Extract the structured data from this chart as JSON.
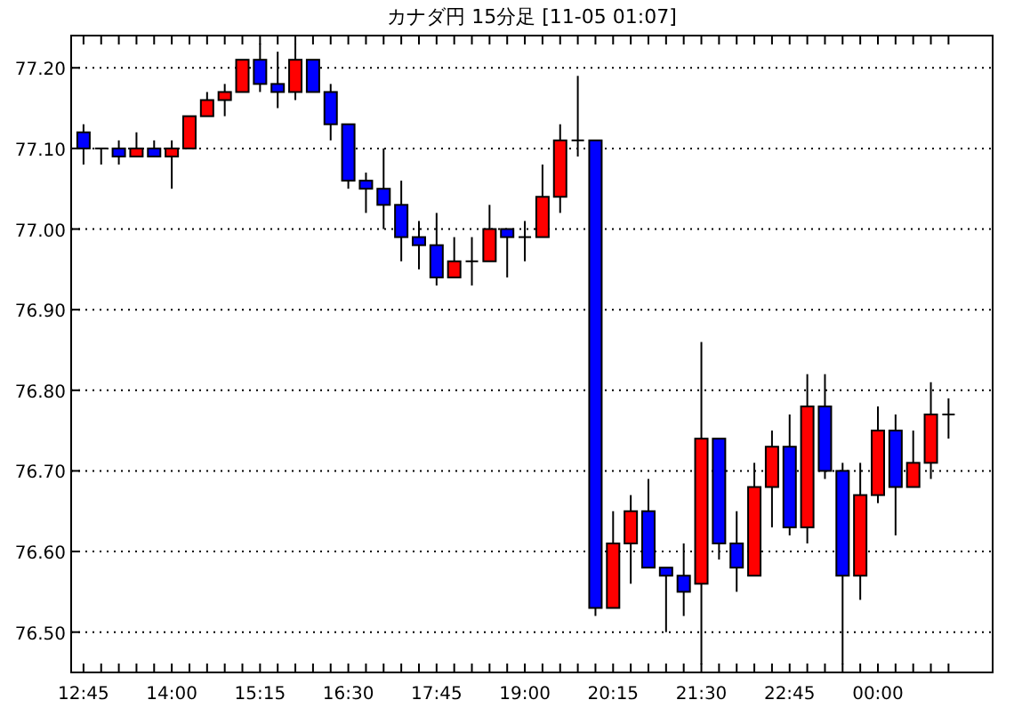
{
  "chart_data": {
    "type": "candlestick",
    "title": "カナダ円 15分足 [11-05 01:07]",
    "categories": [
      "12:45",
      null,
      null,
      null,
      null,
      "14:00",
      null,
      null,
      null,
      null,
      "15:15",
      null,
      null,
      null,
      null,
      "16:30",
      null,
      null,
      null,
      null,
      "17:45",
      null,
      null,
      null,
      null,
      "19:00",
      null,
      null,
      null,
      null,
      "20:15",
      null,
      null,
      null,
      null,
      "21:30",
      null,
      null,
      null,
      null,
      "22:45",
      null,
      null,
      null,
      null,
      "00:00",
      null,
      null,
      null,
      null
    ],
    "ohlc": [
      [
        77.12,
        77.13,
        77.08,
        77.1
      ],
      [
        77.1,
        77.1,
        77.08,
        77.1
      ],
      [
        77.1,
        77.11,
        77.08,
        77.09
      ],
      [
        77.09,
        77.12,
        77.09,
        77.1
      ],
      [
        77.1,
        77.11,
        77.09,
        77.09
      ],
      [
        77.09,
        77.11,
        77.05,
        77.1
      ],
      [
        77.1,
        77.14,
        77.1,
        77.14
      ],
      [
        77.14,
        77.17,
        77.14,
        77.16
      ],
      [
        77.16,
        77.18,
        77.14,
        77.17
      ],
      [
        77.17,
        77.21,
        77.17,
        77.21
      ],
      [
        77.21,
        77.23,
        77.17,
        77.18
      ],
      [
        77.18,
        77.22,
        77.15,
        77.17
      ],
      [
        77.17,
        77.23,
        77.16,
        77.21
      ],
      [
        77.21,
        77.21,
        77.17,
        77.17
      ],
      [
        77.17,
        77.18,
        77.11,
        77.13
      ],
      [
        77.13,
        77.13,
        77.05,
        77.06
      ],
      [
        77.06,
        77.07,
        77.02,
        77.05
      ],
      [
        77.05,
        77.1,
        77.0,
        77.03
      ],
      [
        77.03,
        77.06,
        76.96,
        76.99
      ],
      [
        76.99,
        77.01,
        76.95,
        76.98
      ],
      [
        76.98,
        77.02,
        76.93,
        76.94
      ],
      [
        76.94,
        76.99,
        76.94,
        76.96
      ],
      [
        76.96,
        76.99,
        76.93,
        76.96
      ],
      [
        76.96,
        77.03,
        76.96,
        77.0
      ],
      [
        77.0,
        77.0,
        76.94,
        76.99
      ],
      [
        76.99,
        77.01,
        76.96,
        76.99
      ],
      [
        76.99,
        77.08,
        76.99,
        77.04
      ],
      [
        77.04,
        77.13,
        77.02,
        77.11
      ],
      [
        77.11,
        77.19,
        77.09,
        77.11
      ],
      [
        77.11,
        77.11,
        76.52,
        76.53
      ],
      [
        76.53,
        76.65,
        76.53,
        76.61
      ],
      [
        76.61,
        76.67,
        76.56,
        76.65
      ],
      [
        76.65,
        76.69,
        76.58,
        76.58
      ],
      [
        76.58,
        76.58,
        76.5,
        76.57
      ],
      [
        76.57,
        76.61,
        76.52,
        76.55
      ],
      [
        76.56,
        76.86,
        76.46,
        76.74
      ],
      [
        76.74,
        76.74,
        76.59,
        76.61
      ],
      [
        76.61,
        76.65,
        76.55,
        76.58
      ],
      [
        76.57,
        76.71,
        76.57,
        76.68
      ],
      [
        76.68,
        76.75,
        76.63,
        76.73
      ],
      [
        76.73,
        76.77,
        76.62,
        76.63
      ],
      [
        76.63,
        76.82,
        76.61,
        76.78
      ],
      [
        76.78,
        76.82,
        76.69,
        76.7
      ],
      [
        76.7,
        76.71,
        76.46,
        76.57
      ],
      [
        76.57,
        76.71,
        76.54,
        76.67
      ],
      [
        76.67,
        76.78,
        76.66,
        76.75
      ],
      [
        76.75,
        76.77,
        76.62,
        76.68
      ],
      [
        76.68,
        76.75,
        76.68,
        76.71
      ],
      [
        76.71,
        76.81,
        76.69,
        76.77
      ],
      [
        76.77,
        76.79,
        76.74,
        76.77
      ]
    ],
    "colors": [
      "#0000ff",
      "#000000",
      "#0000ff",
      "#ff0000",
      "#0000ff",
      "#ff0000",
      "#ff0000",
      "#ff0000",
      "#ff0000",
      "#ff0000",
      "#0000ff",
      "#0000ff",
      "#ff0000",
      "#0000ff",
      "#0000ff",
      "#0000ff",
      "#0000ff",
      "#0000ff",
      "#0000ff",
      "#0000ff",
      "#0000ff",
      "#ff0000",
      "#000000",
      "#ff0000",
      "#0000ff",
      "#000000",
      "#ff0000",
      "#ff0000",
      "#000000",
      "#0000ff",
      "#ff0000",
      "#ff0000",
      "#0000ff",
      "#0000ff",
      "#0000ff",
      "#ff0000",
      "#0000ff",
      "#0000ff",
      "#ff0000",
      "#ff0000",
      "#0000ff",
      "#ff0000",
      "#0000ff",
      "#0000ff",
      "#ff0000",
      "#ff0000",
      "#0000ff",
      "#ff0000",
      "#ff0000",
      "#000000"
    ],
    "ylim": [
      76.45,
      77.24
    ],
    "yticks": [
      {
        "value": 76.5,
        "label": "76.50"
      },
      {
        "value": 76.6,
        "label": "76.60"
      },
      {
        "value": 76.7,
        "label": "76.70"
      },
      {
        "value": 76.8,
        "label": "76.80"
      },
      {
        "value": 76.9,
        "label": "76.90"
      },
      {
        "value": 77.0,
        "label": "77.00"
      },
      {
        "value": 77.1,
        "label": "77.10"
      },
      {
        "value": 77.2,
        "label": "77.20"
      }
    ],
    "grid": "y"
  }
}
